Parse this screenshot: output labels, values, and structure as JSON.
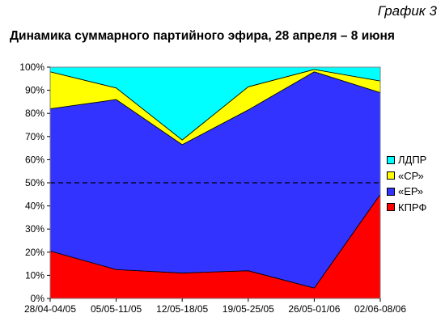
{
  "header": {
    "figure_label": "График 3",
    "title": "Динамика суммарного партийного эфира, 28 апреля – 8 июня"
  },
  "chart_data": {
    "type": "area",
    "stacked": true,
    "categories": [
      "28/04-04/05",
      "05/05-11/05",
      "12/05-18/05",
      "19/05-25/05",
      "26/05-01/06",
      "02/06-08/06"
    ],
    "series": [
      {
        "name": "КПРФ",
        "color": "#ff0000",
        "values": [
          20.5,
          12.5,
          11,
          12,
          4.5,
          45
        ]
      },
      {
        "name": "«ЕР»",
        "color": "#3333ff",
        "values": [
          61.5,
          73.5,
          55.5,
          69.5,
          93.5,
          44
        ]
      },
      {
        "name": "«СР»",
        "color": "#ffff00",
        "values": [
          16,
          5,
          2,
          10,
          1,
          5
        ]
      },
      {
        "name": "ЛДПР",
        "color": "#00ffff",
        "values": [
          2,
          9,
          31.5,
          8.5,
          1,
          6
        ]
      }
    ],
    "y_ticks": [
      "0%",
      "10%",
      "20%",
      "30%",
      "40%",
      "50%",
      "60%",
      "70%",
      "80%",
      "90%",
      "100%"
    ],
    "ylim": [
      0,
      100
    ],
    "reference_line": 50,
    "grid": false,
    "legend_position": "right",
    "legend_order": [
      "ЛДПР",
      "«СР»",
      "«ЕР»",
      "КПРФ"
    ]
  }
}
